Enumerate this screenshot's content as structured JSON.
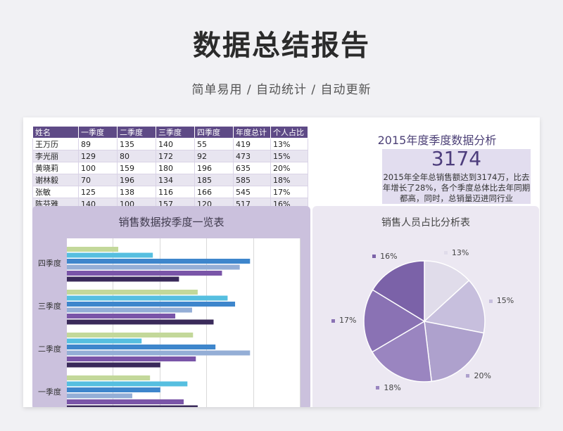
{
  "header": {
    "title": "数据总结报告",
    "subtitle": "简单易用 / 自动统计 / 自动更新"
  },
  "table": {
    "headers": [
      "姓名",
      "一季度",
      "二季度",
      "三季度",
      "四季度",
      "年度总计",
      "个人占比"
    ],
    "rows": [
      [
        "王万历",
        "89",
        "135",
        "140",
        "55",
        "419",
        "13%"
      ],
      [
        "李光丽",
        "129",
        "80",
        "172",
        "92",
        "473",
        "15%"
      ],
      [
        "黄晓莉",
        "100",
        "159",
        "180",
        "196",
        "635",
        "20%"
      ],
      [
        "谢林毅",
        "70",
        "196",
        "134",
        "185",
        "585",
        "18%"
      ],
      [
        "张敏",
        "125",
        "138",
        "116",
        "166",
        "545",
        "17%"
      ],
      [
        "陈芬雅",
        "140",
        "100",
        "157",
        "120",
        "517",
        "16%"
      ]
    ]
  },
  "summary": {
    "title": "2015年度季度数据分析",
    "total": "3174",
    "text": "2015年全年总销售额达到3174万，比去年增长了28%，各个季度总体比去年同期都高，同时，总销量迈进同行业"
  },
  "bar_panel": {
    "title": "销售数据按季度一览表"
  },
  "pie_panel": {
    "title": "销售人员占比分析表"
  },
  "colors": {
    "persons": [
      "#c3d89a",
      "#56bfe0",
      "#3e86cc",
      "#94aed6",
      "#7a55a8",
      "#3a2a5a"
    ],
    "pie": [
      "#e0dcea",
      "#c7bfdd",
      "#aea1cd",
      "#9a85c0",
      "#8a72b4",
      "#7b62a8"
    ]
  },
  "chart_data": [
    {
      "type": "bar",
      "orientation": "horizontal",
      "title": "销售数据按季度一览表",
      "categories": [
        "一季度",
        "二季度",
        "三季度",
        "四季度"
      ],
      "series": [
        {
          "name": "王万历",
          "values": [
            89,
            135,
            140,
            55
          ]
        },
        {
          "name": "李光丽",
          "values": [
            129,
            80,
            172,
            92
          ]
        },
        {
          "name": "黄晓莉",
          "values": [
            100,
            159,
            180,
            196
          ]
        },
        {
          "name": "谢林毅",
          "values": [
            70,
            196,
            134,
            185
          ]
        },
        {
          "name": "张敏",
          "values": [
            125,
            138,
            116,
            166
          ]
        },
        {
          "name": "陈芬雅",
          "values": [
            140,
            100,
            157,
            120
          ]
        }
      ],
      "xlim": [
        0,
        250
      ],
      "grid": true
    },
    {
      "type": "pie",
      "title": "销售人员占比分析表",
      "labels": [
        "王万历",
        "李光丽",
        "黄晓莉",
        "谢林毅",
        "张敏",
        "陈芬雅"
      ],
      "values": [
        419,
        473,
        635,
        585,
        545,
        517
      ],
      "percent_labels": [
        "13%",
        "15%",
        "20%",
        "18%",
        "17%",
        "16%"
      ]
    }
  ]
}
